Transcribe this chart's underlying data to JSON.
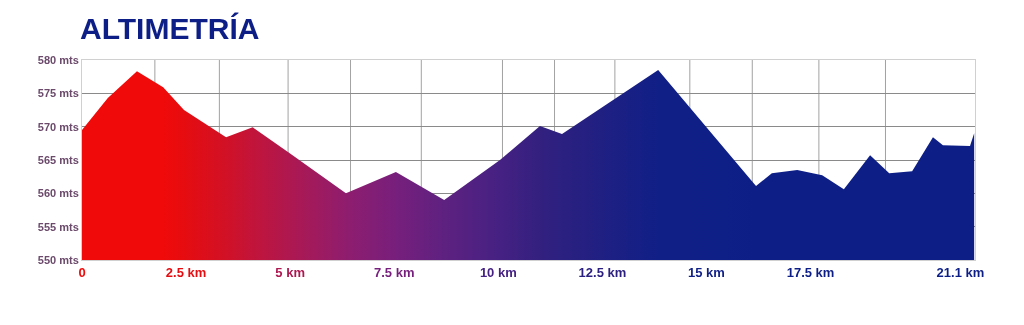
{
  "chart_data": {
    "type": "area",
    "title": "ALTIMETRÍA",
    "x": [
      0,
      0.62,
      1.32,
      1.95,
      2.45,
      3.46,
      4.1,
      4.99,
      6.34,
      7.54,
      8.7,
      10.04,
      11.0,
      11.53,
      13.84,
      16.19,
      16.57,
      17.18,
      17.78,
      18.3,
      18.93,
      19.39,
      19.94,
      20.44,
      20.68,
      21.33,
      21.43
    ],
    "series": [
      {
        "colors": [
          "#f00a0a",
          "#f00a0a",
          "#f00a0a",
          "#f00a0a",
          "#e60c10",
          "#d11126",
          "#c2143a",
          "#ae1850",
          "#8f1d6e",
          "#771f7c",
          "#5e2180",
          "#452183",
          "#33207f",
          "#2b2080",
          "#101f86",
          "#0d1f87",
          "#0d1f87",
          "#0d1f87",
          "#0d1f87",
          "#0d1f87",
          "#0d1f87",
          "#0d1f87",
          "#0d1f87",
          "#0d1f87",
          "#0d1f87",
          "#0d1f87",
          "#0d1f87"
        ],
        "values": [
          569.5,
          574.3,
          578.3,
          575.9,
          572.5,
          568.4,
          569.9,
          566.0,
          560.0,
          563.2,
          559.0,
          565.0,
          570.1,
          568.9,
          578.5,
          561.1,
          563.0,
          563.5,
          562.7,
          560.6,
          565.7,
          563.0,
          563.3,
          568.4,
          567.2,
          567.1,
          569.0
        ]
      }
    ],
    "xlim": [
      0,
      21.45
    ],
    "ylim": [
      550,
      580
    ],
    "xticks": [
      {
        "value": 0,
        "label": "0"
      },
      {
        "value": 2.5,
        "label": "2.5 km"
      },
      {
        "value": 5,
        "label": "5 km"
      },
      {
        "value": 7.5,
        "label": "7.5 km"
      },
      {
        "value": 10,
        "label": "10 km"
      },
      {
        "value": 12.5,
        "label": "12.5 km"
      },
      {
        "value": 15,
        "label": "15 km"
      },
      {
        "value": 17.5,
        "label": "17.5 km"
      },
      {
        "value": 21.1,
        "label": "21.1 km"
      },
      {
        "value": 1.75,
        "label": null
      },
      {
        "value": 3.3,
        "label": null
      },
      {
        "value": 4.95,
        "label": null
      },
      {
        "value": 6.45,
        "label": null
      },
      {
        "value": 8.15,
        "label": null
      },
      {
        "value": 10.1,
        "label": null
      },
      {
        "value": 11.35,
        "label": null
      },
      {
        "value": 12.8,
        "label": null
      },
      {
        "value": 14.6,
        "label": null
      },
      {
        "value": 16.1,
        "label": null
      },
      {
        "value": 17.7,
        "label": null
      },
      {
        "value": 19.3,
        "label": null
      }
    ],
    "yticks": [
      {
        "value": 550,
        "label": "550 mts"
      },
      {
        "value": 555,
        "label": "555 mts"
      },
      {
        "value": 560,
        "label": "560 mts"
      },
      {
        "value": 565,
        "label": "565 mts"
      },
      {
        "value": 570,
        "label": "570 mts"
      },
      {
        "value": 575,
        "label": "575 mts"
      },
      {
        "value": 580,
        "label": "580 mts"
      }
    ],
    "grid": true
  }
}
